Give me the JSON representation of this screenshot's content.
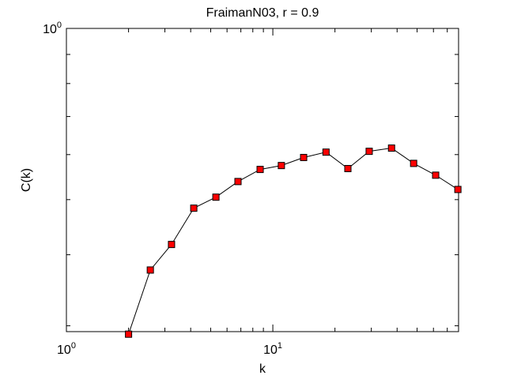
{
  "chart_data": {
    "type": "line",
    "title": "FraimanN03, r = 0.9",
    "x_label": "k",
    "y_label": "C(k)",
    "x_scale": "log",
    "y_scale": "log",
    "x": [
      2,
      2.55,
      3.23,
      4.14,
      5.3,
      6.78,
      8.68,
      11.0,
      14.1,
      18.1,
      23.1,
      29.3,
      37.6,
      48.1,
      61.5,
      78.8
    ],
    "series": [
      {
        "color": "#000000",
        "marker_color": "#ff0000",
        "values": [
          0.29,
          0.376,
          0.417,
          0.483,
          0.505,
          0.538,
          0.565,
          0.574,
          0.593,
          0.606,
          0.567,
          0.608,
          0.616,
          0.579,
          0.552,
          0.521
        ]
      }
    ],
    "xlim": [
      1,
      79.4
    ],
    "ylim": [
      0.293,
      1
    ],
    "xticks": [
      {
        "value": 1,
        "label": "10^0"
      },
      {
        "value": 10,
        "label": "10^1"
      }
    ],
    "yticks": [
      {
        "value": 1,
        "label": "10^0"
      }
    ]
  }
}
